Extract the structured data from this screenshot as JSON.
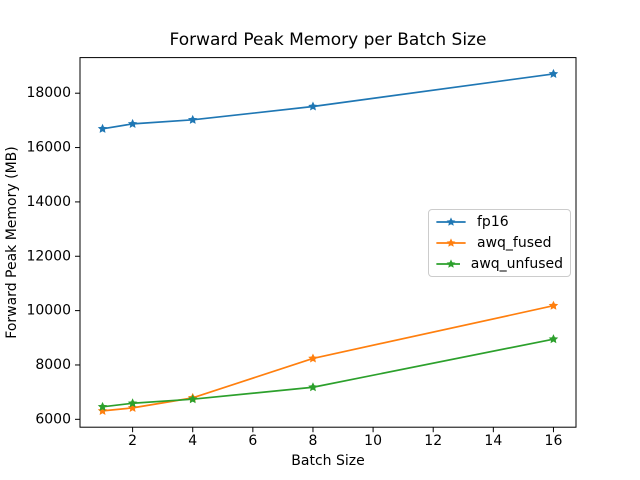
{
  "chart_data": {
    "type": "line",
    "title": "Forward Peak Memory per Batch Size",
    "xlabel": "Batch Size",
    "ylabel": "Forward Peak Memory (MB)",
    "x": [
      1,
      2,
      4,
      8,
      16
    ],
    "series": [
      {
        "name": "fp16",
        "color": "#1f77b4",
        "values": [
          16690,
          16870,
          17020,
          17510,
          18710
        ]
      },
      {
        "name": "awq_fused",
        "color": "#ff7f0e",
        "values": [
          6310,
          6420,
          6790,
          8240,
          10180
        ]
      },
      {
        "name": "awq_unfused",
        "color": "#2ca02c",
        "values": [
          6460,
          6590,
          6740,
          7180,
          8950
        ]
      }
    ],
    "xticks": [
      2,
      4,
      6,
      8,
      10,
      12,
      14,
      16
    ],
    "yticks": [
      6000,
      8000,
      10000,
      12000,
      14000,
      16000,
      18000
    ],
    "xlim": [
      0.25,
      16.75
    ],
    "ylim": [
      5710,
      19310
    ],
    "marker": "star",
    "grid": false,
    "legend_position": "center-right",
    "axis_color": "#000000",
    "background_color": "#ffffff"
  }
}
